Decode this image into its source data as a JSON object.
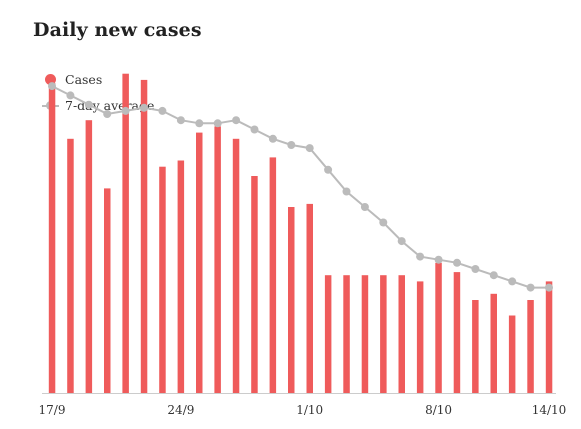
{
  "chart_data": {
    "type": "bar",
    "title": "Daily new cases",
    "xlabel": "",
    "ylabel": "",
    "x": [
      "17/9",
      "18/9",
      "19/9",
      "20/9",
      "21/9",
      "22/9",
      "23/9",
      "24/9",
      "25/9",
      "26/9",
      "27/9",
      "28/9",
      "29/9",
      "30/9",
      "1/10",
      "2/10",
      "3/10",
      "4/10",
      "5/10",
      "6/10",
      "7/10",
      "8/10",
      "9/10",
      "10/10",
      "11/10",
      "12/10",
      "13/10",
      "14/10"
    ],
    "tick_labels": [
      "17/9",
      "24/9",
      "1/10",
      "8/10",
      "14/10"
    ],
    "tick_indices": [
      0,
      7,
      14,
      21,
      27
    ],
    "ylim": [
      0,
      100
    ],
    "grid": false,
    "legend_position": "top-left",
    "series": [
      {
        "name": "Cases",
        "type": "bar",
        "color": "#ef5b5b",
        "values": [
          100,
          82,
          88,
          66,
          103,
          101,
          73,
          75,
          84,
          86,
          82,
          70,
          76,
          60,
          61,
          38,
          38,
          38,
          38,
          38,
          36,
          42,
          39,
          30,
          32,
          25,
          30,
          36
        ]
      },
      {
        "name": "7-day average",
        "type": "line",
        "color": "#bbbbbb",
        "values": [
          99,
          96,
          93,
          90,
          91,
          92,
          91,
          88,
          87,
          87,
          88,
          85,
          82,
          80,
          79,
          72,
          65,
          60,
          55,
          49,
          44,
          43,
          42,
          40,
          38,
          36,
          34,
          34
        ]
      }
    ]
  }
}
